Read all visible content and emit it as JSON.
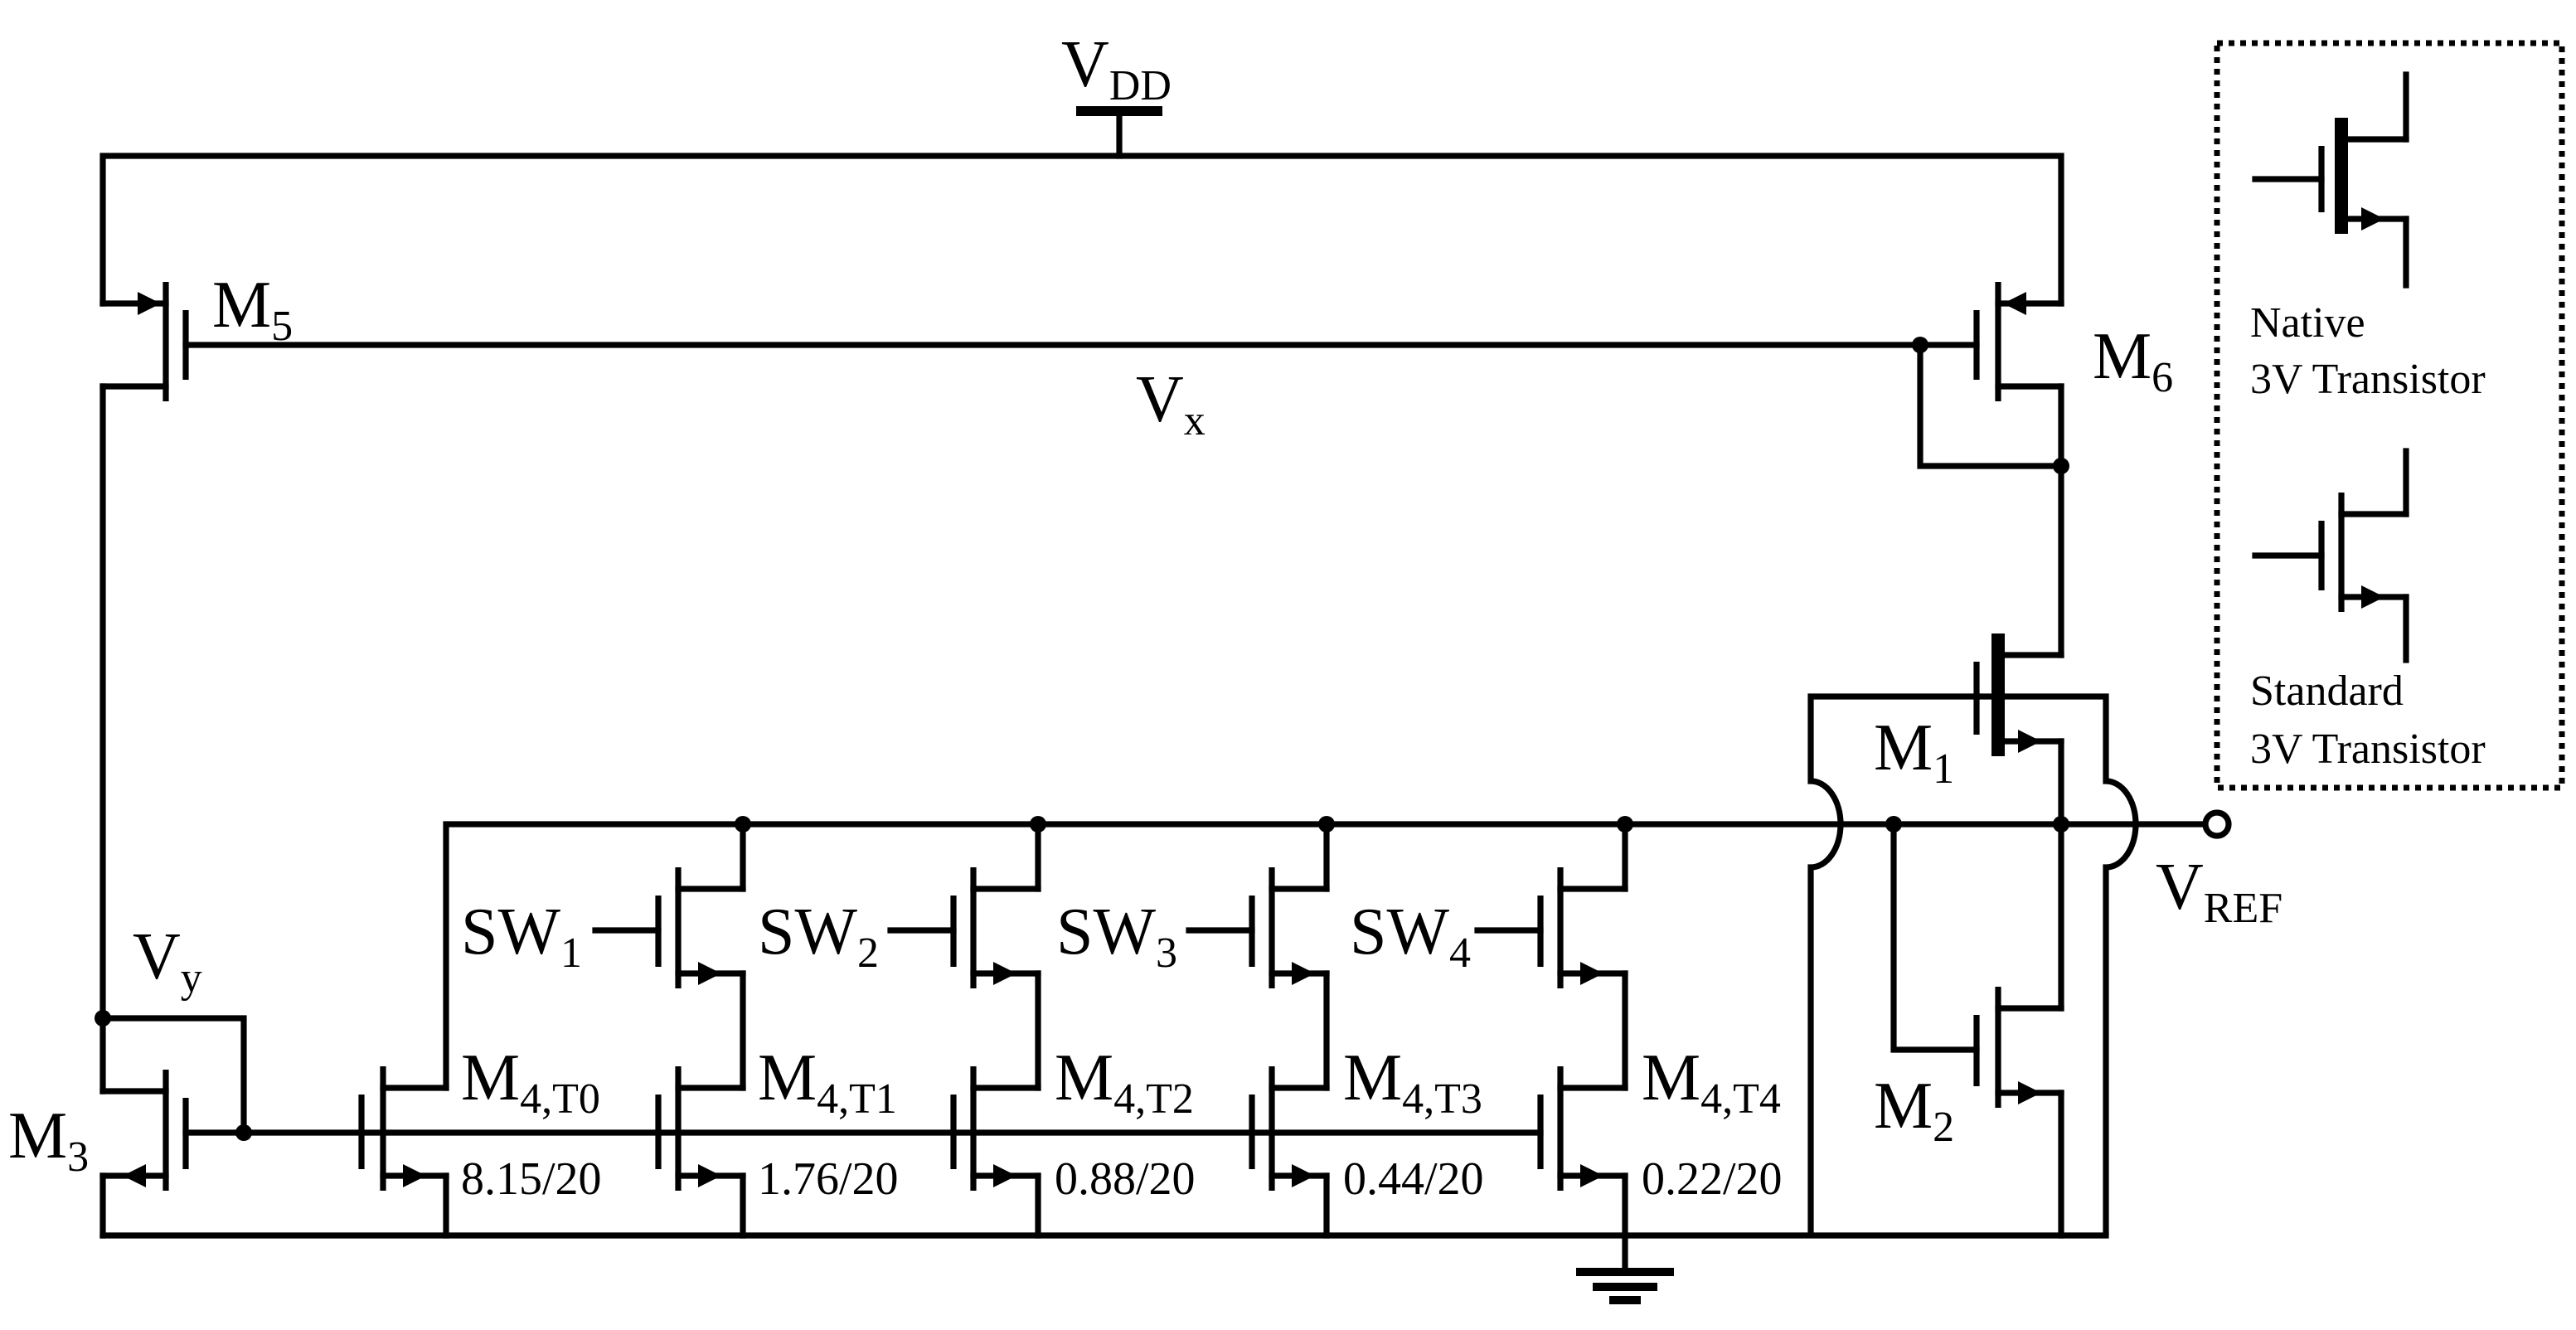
{
  "diagram": {
    "labels": {
      "vdd": {
        "main": "V",
        "sub": "DD"
      },
      "vx": {
        "main": "V",
        "sub": "x"
      },
      "vy": {
        "main": "V",
        "sub": "y"
      },
      "vref": {
        "main": "V",
        "sub": "REF"
      },
      "m1": {
        "main": "M",
        "sub": "1"
      },
      "m2": {
        "main": "M",
        "sub": "2"
      },
      "m3": {
        "main": "M",
        "sub": "3"
      },
      "m5": {
        "main": "M",
        "sub": "5"
      },
      "m6": {
        "main": "M",
        "sub": "6"
      }
    },
    "switches": [
      {
        "main": "SW",
        "sub": "1"
      },
      {
        "main": "SW",
        "sub": "2"
      },
      {
        "main": "SW",
        "sub": "3"
      },
      {
        "main": "SW",
        "sub": "4"
      }
    ],
    "trim_transistors": [
      {
        "main": "M",
        "sub": "4,T0",
        "size": "8.15/20"
      },
      {
        "main": "M",
        "sub": "4,T1",
        "size": "1.76/20"
      },
      {
        "main": "M",
        "sub": "4,T2",
        "size": "0.88/20"
      },
      {
        "main": "M",
        "sub": "4,T3",
        "size": "0.44/20"
      },
      {
        "main": "M",
        "sub": "4,T4",
        "size": "0.22/20"
      }
    ],
    "legend": {
      "native": {
        "line1": "Native",
        "line2": "3V Transistor"
      },
      "standard": {
        "line1": "Standard",
        "line2": "3V Transistor"
      }
    },
    "colors": {
      "wire": "#000000",
      "background": "#ffffff"
    }
  }
}
